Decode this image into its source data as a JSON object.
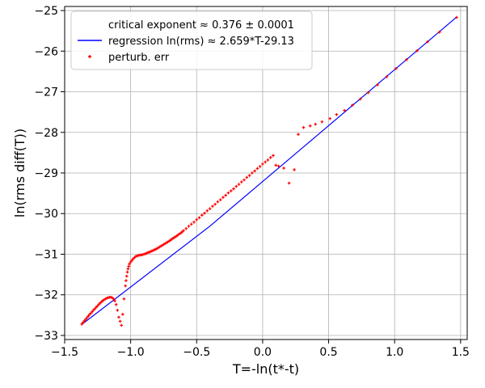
{
  "chart_data": {
    "type": "scatter",
    "title": "",
    "xlabel": "T=-ln(t*-t)",
    "ylabel": "ln(rms diff(T))",
    "xlim": [
      -1.5,
      1.55
    ],
    "ylim": [
      -33.1,
      -24.9
    ],
    "x_ticks": [
      -1.5,
      -1.0,
      -0.5,
      0.0,
      0.5,
      1.0,
      1.5
    ],
    "x_tick_labels": [
      "−1.5",
      "−1.0",
      "−0.5",
      "0.0",
      "0.5",
      "1.0",
      "1.5"
    ],
    "y_ticks": [
      -33,
      -32,
      -31,
      -30,
      -29,
      -28,
      -27,
      -26,
      -25
    ],
    "y_tick_labels": [
      "−33",
      "−32",
      "−31",
      "−30",
      "−29",
      "−28",
      "−27",
      "−26",
      "−25"
    ],
    "grid": true,
    "legend_placement": "top-left",
    "legend": [
      {
        "label": "critical exponent ≈ 0.376 ± 0.0001",
        "kind": "none"
      },
      {
        "label": "regression ln(rms) ≈ 2.659*T-29.13",
        "kind": "line",
        "color": "#0000ff"
      },
      {
        "label": "perturb. err",
        "kind": "marker",
        "color": "#ff0000"
      }
    ],
    "series": [
      {
        "name": "regression ln(rms) ≈ 2.659*T-29.13",
        "kind": "line",
        "color": "#0000ff",
        "x": [
          -1.37,
          -0.4,
          0.4,
          1.47
        ],
        "y": [
          -32.73,
          -30.31,
          -28.11,
          -25.16
        ]
      },
      {
        "name": "perturb. err",
        "kind": "scatter",
        "color": "#ff0000",
        "x": [
          -1.37,
          -1.36,
          -1.35,
          -1.34,
          -1.33,
          -1.32,
          -1.31,
          -1.3,
          -1.29,
          -1.28,
          -1.27,
          -1.26,
          -1.25,
          -1.24,
          -1.23,
          -1.22,
          -1.21,
          -1.2,
          -1.19,
          -1.18,
          -1.17,
          -1.16,
          -1.15,
          -1.14,
          -1.13,
          -1.12,
          -1.11,
          -1.1,
          -1.09,
          -1.08,
          -1.07,
          -1.06,
          -1.05,
          -1.04,
          -1.035,
          -1.03,
          -1.025,
          -1.02,
          -1.015,
          -1.01,
          -1.0,
          -0.99,
          -0.98,
          -0.97,
          -0.96,
          -0.95,
          -0.94,
          -0.93,
          -0.92,
          -0.91,
          -0.9,
          -0.89,
          -0.88,
          -0.87,
          -0.86,
          -0.85,
          -0.84,
          -0.83,
          -0.82,
          -0.81,
          -0.8,
          -0.79,
          -0.78,
          -0.77,
          -0.76,
          -0.75,
          -0.74,
          -0.73,
          -0.72,
          -0.71,
          -0.7,
          -0.69,
          -0.68,
          -0.67,
          -0.66,
          -0.65,
          -0.64,
          -0.63,
          -0.62,
          -0.61,
          -0.6,
          -0.58,
          -0.56,
          -0.54,
          -0.52,
          -0.5,
          -0.48,
          -0.46,
          -0.44,
          -0.42,
          -0.4,
          -0.38,
          -0.36,
          -0.34,
          -0.32,
          -0.3,
          -0.28,
          -0.26,
          -0.24,
          -0.22,
          -0.2,
          -0.18,
          -0.16,
          -0.14,
          -0.12,
          -0.1,
          -0.08,
          -0.06,
          -0.04,
          -0.02,
          0.0,
          0.02,
          0.04,
          0.06,
          0.08,
          0.1,
          0.12,
          0.16,
          0.2,
          0.24,
          0.27,
          0.31,
          0.36,
          0.4,
          0.45,
          0.51,
          0.56,
          0.62,
          0.68,
          0.74,
          0.8,
          0.87,
          0.94,
          1.01,
          1.09,
          1.17,
          1.25,
          1.34,
          1.47
        ],
        "y": [
          -32.72,
          -32.68,
          -32.64,
          -32.6,
          -32.56,
          -32.52,
          -32.48,
          -32.45,
          -32.41,
          -32.37,
          -32.34,
          -32.3,
          -32.27,
          -32.23,
          -32.2,
          -32.17,
          -32.14,
          -32.12,
          -32.1,
          -32.08,
          -32.07,
          -32.06,
          -32.06,
          -32.07,
          -32.1,
          -32.15,
          -32.24,
          -32.38,
          -32.55,
          -32.65,
          -32.75,
          -32.48,
          -32.1,
          -31.78,
          -31.65,
          -31.54,
          -31.44,
          -31.36,
          -31.3,
          -31.24,
          -31.19,
          -31.15,
          -31.11,
          -31.08,
          -31.05,
          -31.04,
          -31.03,
          -31.02,
          -31.02,
          -31.01,
          -31.0,
          -30.99,
          -30.98,
          -30.96,
          -30.95,
          -30.94,
          -30.92,
          -30.91,
          -30.89,
          -30.88,
          -30.86,
          -30.84,
          -30.82,
          -30.8,
          -30.78,
          -30.76,
          -30.74,
          -30.72,
          -30.7,
          -30.68,
          -30.66,
          -30.63,
          -30.61,
          -30.59,
          -30.57,
          -30.55,
          -30.52,
          -30.5,
          -30.48,
          -30.45,
          -30.42,
          -30.37,
          -30.31,
          -30.26,
          -30.21,
          -30.15,
          -30.1,
          -30.04,
          -29.99,
          -29.93,
          -29.88,
          -29.82,
          -29.77,
          -29.71,
          -29.66,
          -29.6,
          -29.55,
          -29.49,
          -29.44,
          -29.39,
          -29.33,
          -29.28,
          -29.22,
          -29.17,
          -29.11,
          -29.06,
          -29.0,
          -28.95,
          -28.89,
          -28.84,
          -28.78,
          -28.73,
          -28.68,
          -28.62,
          -28.57,
          -28.81,
          -28.83,
          -28.88,
          -29.25,
          -28.92,
          -28.05,
          -27.88,
          -27.84,
          -27.8,
          -27.74,
          -27.66,
          -27.56,
          -27.46,
          -27.33,
          -27.18,
          -27.02,
          -26.83,
          -26.63,
          -26.43,
          -26.21,
          -25.99,
          -25.77,
          -25.53,
          -25.17
        ]
      }
    ]
  }
}
